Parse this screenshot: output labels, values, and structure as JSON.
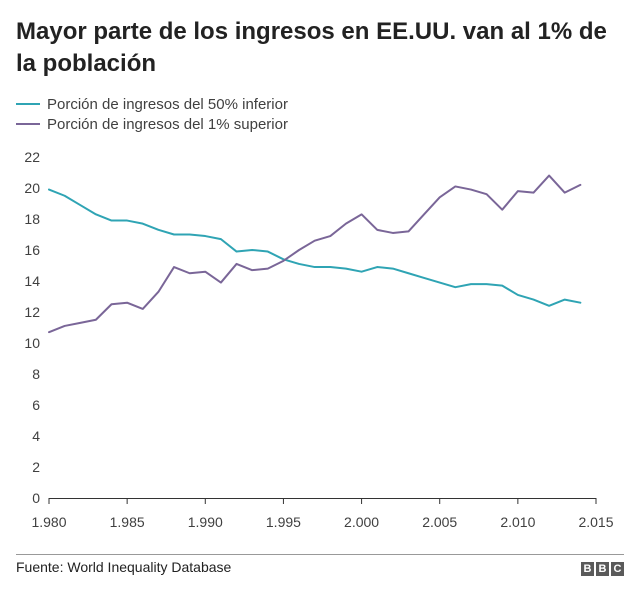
{
  "title": "Mayor parte de los ingresos en EE.UU. van al 1% de la población",
  "source": "Fuente: World Inequality Database",
  "logo": [
    "B",
    "B",
    "C"
  ],
  "chart_data": {
    "type": "line",
    "title": "Mayor parte de los ingresos en EE.UU. van al 1% de la población",
    "xlabel": "",
    "ylabel": "",
    "xlim": [
      1980,
      2015
    ],
    "ylim": [
      0,
      22
    ],
    "x_ticks": [
      1980,
      1985,
      1990,
      1995,
      2000,
      2005,
      2010,
      2015
    ],
    "x_tick_labels": [
      "1.980",
      "1.985",
      "1.990",
      "1.995",
      "2.000",
      "2.005",
      "2.010",
      "2.015"
    ],
    "y_ticks": [
      0,
      2,
      4,
      6,
      8,
      10,
      12,
      14,
      16,
      18,
      20,
      22
    ],
    "grid": false,
    "legend_position": "top-left",
    "x": [
      1980,
      1981,
      1982,
      1983,
      1984,
      1985,
      1986,
      1987,
      1988,
      1989,
      1990,
      1991,
      1992,
      1993,
      1994,
      1995,
      1996,
      1997,
      1998,
      1999,
      2000,
      2001,
      2002,
      2003,
      2004,
      2005,
      2006,
      2007,
      2008,
      2009,
      2010,
      2011,
      2012,
      2013,
      2014
    ],
    "series": [
      {
        "name": "Porción de ingresos del 50% inferior",
        "color": "#2fa4b4",
        "values": [
          19.9,
          19.5,
          18.9,
          18.3,
          17.9,
          17.9,
          17.7,
          17.3,
          17.0,
          17.0,
          16.9,
          16.7,
          15.9,
          16.0,
          15.9,
          15.4,
          15.1,
          14.9,
          14.9,
          14.8,
          14.6,
          14.9,
          14.8,
          14.5,
          14.2,
          13.9,
          13.6,
          13.8,
          13.8,
          13.7,
          13.1,
          12.8,
          12.4,
          12.8,
          12.6
        ]
      },
      {
        "name": "Porción de ingresos del 1% superior",
        "color": "#7a6698",
        "values": [
          10.7,
          11.1,
          11.3,
          11.5,
          12.5,
          12.6,
          12.2,
          13.3,
          14.9,
          14.5,
          14.6,
          13.9,
          15.1,
          14.7,
          14.8,
          15.3,
          16.0,
          16.6,
          16.9,
          17.7,
          18.3,
          17.3,
          17.1,
          17.2,
          18.3,
          19.4,
          20.1,
          19.9,
          19.6,
          18.6,
          19.8,
          19.7,
          20.8,
          19.7,
          20.2
        ]
      }
    ]
  }
}
